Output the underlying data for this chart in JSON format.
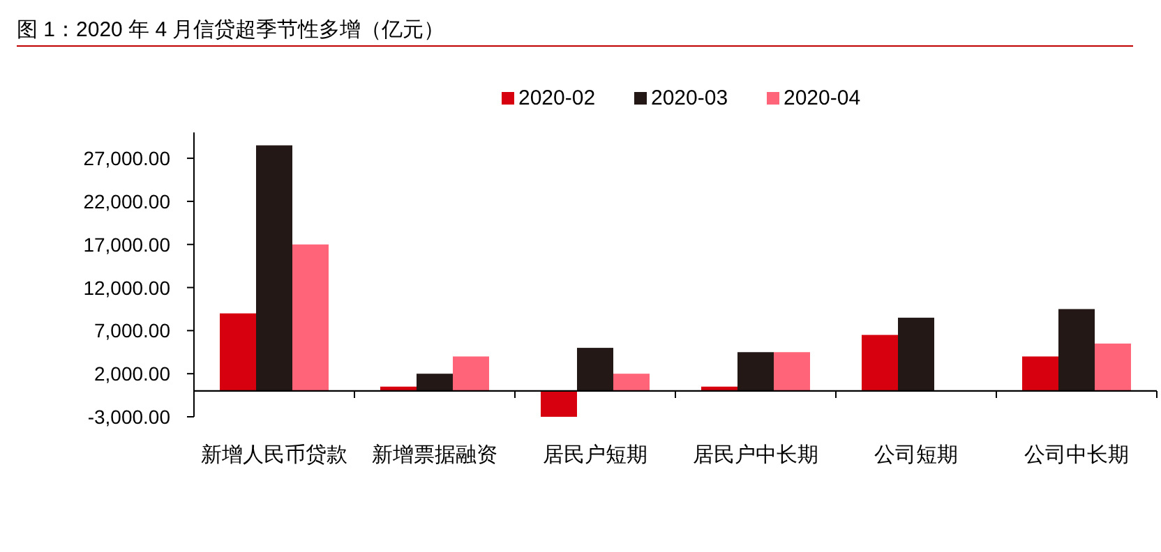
{
  "chart_data": {
    "type": "bar",
    "title": "图 1：2020 年 4 月信贷超季节性多增（亿元）",
    "categories": [
      "新增人民币贷款",
      "新增票据融资",
      "居民户短期",
      "居民户中长期",
      "公司短期",
      "公司中长期"
    ],
    "series": [
      {
        "name": "2020-02",
        "color": "#d7000f",
        "values": [
          9000,
          500,
          -3000,
          500,
          6500,
          4000
        ]
      },
      {
        "name": "2020-03",
        "color": "#231815",
        "values": [
          28500,
          2000,
          5000,
          4500,
          8500,
          9500
        ]
      },
      {
        "name": "2020-04",
        "color": "#ff6478",
        "values": [
          17000,
          4000,
          2000,
          4500,
          0,
          5500
        ]
      }
    ],
    "ylim": [
      -3000,
      30000
    ],
    "yticks": [
      {
        "value": -3000,
        "label": "-3,000.00"
      },
      {
        "value": 2000,
        "label": "2,000.00"
      },
      {
        "value": 7000,
        "label": "7,000.00"
      },
      {
        "value": 12000,
        "label": "12,000.00"
      },
      {
        "value": 17000,
        "label": "17,000.00"
      },
      {
        "value": 22000,
        "label": "22,000.00"
      },
      {
        "value": 27000,
        "label": "27,000.00"
      }
    ],
    "grid": false,
    "legend": "top"
  }
}
